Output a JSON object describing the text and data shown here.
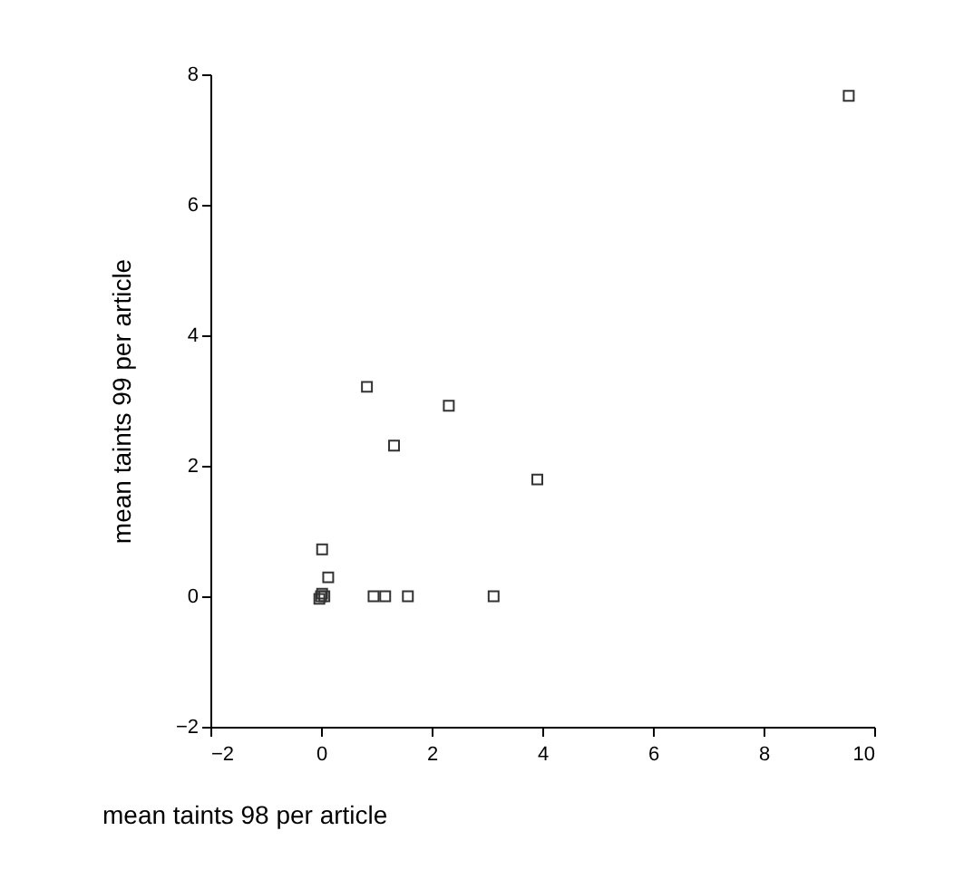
{
  "chart_data": {
    "type": "scatter",
    "xlabel": "mean taints 98 per article",
    "ylabel": "mean taints 99 per article",
    "marker": "square",
    "grid": false,
    "x": [
      9.54,
      0.83,
      2.31,
      1.32,
      3.91,
      0.02,
      0.13,
      0,
      0.02,
      -0.03,
      0.06,
      0.95,
      1.16,
      1.57,
      3.12
    ],
    "series": [
      {
        "color": "#333333",
        "values": [
          7.67,
          3.21,
          2.92,
          2.31,
          1.79,
          0.72,
          0.29,
          0,
          0.04,
          -0.04,
          0,
          0,
          0,
          0,
          0
        ]
      }
    ],
    "xlim": [
      -2,
      10
    ],
    "xticks": [
      -2,
      0,
      2,
      4,
      6,
      8,
      10
    ],
    "ylim": [
      -2,
      8
    ],
    "yticks": [
      -2,
      0,
      2,
      4,
      6,
      8
    ]
  }
}
